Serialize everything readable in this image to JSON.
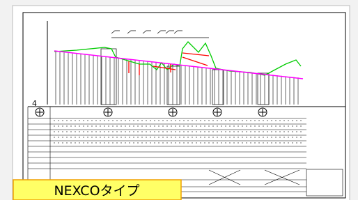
{
  "label": "NEXCOタイプ",
  "station_mark": "4"
}
